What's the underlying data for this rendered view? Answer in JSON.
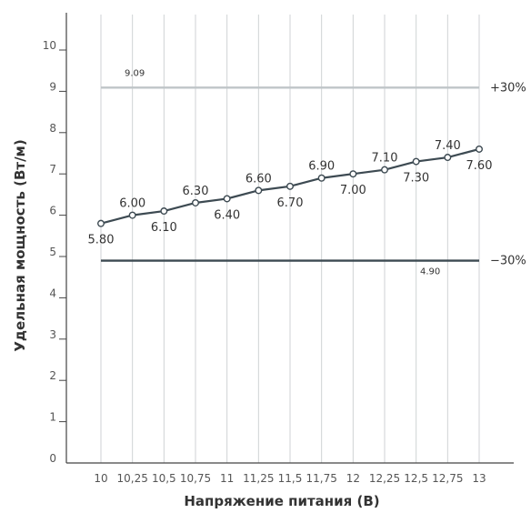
{
  "chart_data": {
    "type": "line",
    "xlabel": "Напряжение питания (В)",
    "ylabel": "Удельная мощность (Вт/м)",
    "ylim": [
      0,
      10
    ],
    "x_tick_labels": [
      "10",
      "10,25",
      "10,5",
      "10,75",
      "11",
      "11,25",
      "11,5",
      "11,75",
      "12",
      "12,25",
      "12,5",
      "12,75",
      "13"
    ],
    "y_tick_labels": [
      "0",
      "1",
      "2",
      "3",
      "4",
      "5",
      "6",
      "7",
      "8",
      "9",
      "10"
    ],
    "x": [
      10,
      10.25,
      10.5,
      10.75,
      11,
      11.25,
      11.5,
      11.75,
      12,
      12.25,
      12.5,
      12.75,
      13
    ],
    "values": [
      5.8,
      6.0,
      6.1,
      6.3,
      6.4,
      6.6,
      6.7,
      6.9,
      7.0,
      7.1,
      7.3,
      7.4,
      7.6
    ],
    "data_labels": [
      "5.80",
      "6.00",
      "6.10",
      "6.30",
      "6.40",
      "6.60",
      "6.70",
      "6.90",
      "7.00",
      "7.10",
      "7.30",
      "7.40",
      "7.60"
    ],
    "reference_lines": [
      {
        "value": 9.09,
        "value_label": "9.09",
        "tag": "+30%",
        "color": "#bfc5c8"
      },
      {
        "value": 4.9,
        "value_label": "4.90",
        "tag": "−30%",
        "color": "#3d4a52"
      }
    ],
    "grid": "vertical",
    "series_color": "#3d4a52"
  }
}
